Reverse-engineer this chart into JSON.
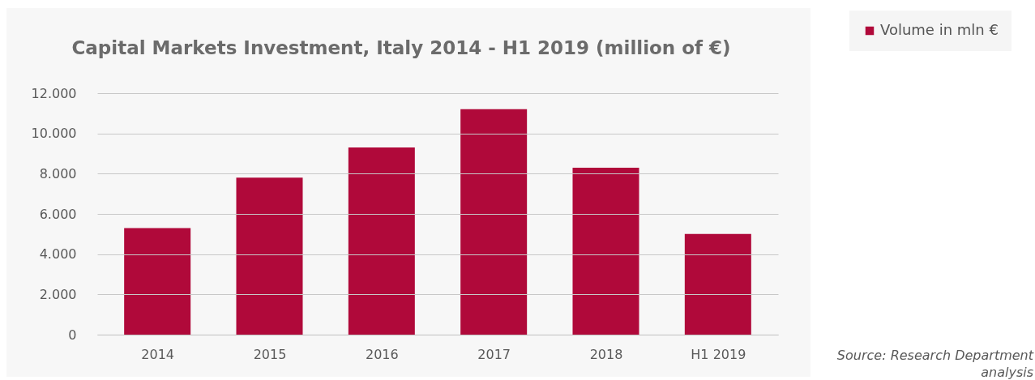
{
  "chart_data": {
    "type": "bar",
    "title": "Capital Markets Investment, Italy 2014 - H1 2019 (million of €)",
    "categories": [
      "2014",
      "2015",
      "2016",
      "2017",
      "2018",
      "H1 2019"
    ],
    "series": [
      {
        "name": "Volume in mln €",
        "color": "#b0093a",
        "values": [
          5300,
          7800,
          9300,
          11200,
          8300,
          5000
        ]
      }
    ],
    "ylim": [
      0,
      12000
    ],
    "yticks": [
      {
        "value": 0,
        "label": "0"
      },
      {
        "value": 2000,
        "label": "2.000"
      },
      {
        "value": 4000,
        "label": "4.000"
      },
      {
        "value": 6000,
        "label": "6.000"
      },
      {
        "value": 8000,
        "label": "8.000"
      },
      {
        "value": 10000,
        "label": "10.000"
      },
      {
        "value": 12000,
        "label": "12.000"
      }
    ],
    "grid": "y",
    "legend": "top right",
    "annotations": [
      "Source: Research Department analysis"
    ]
  }
}
